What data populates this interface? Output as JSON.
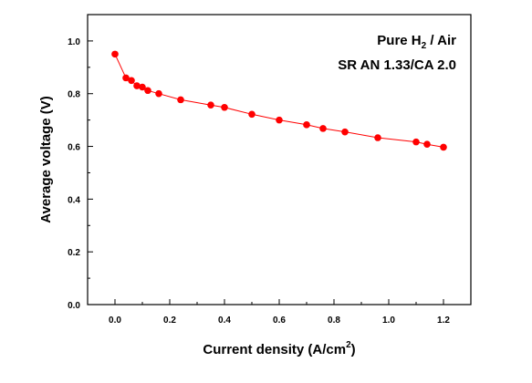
{
  "chart_data": {
    "type": "line",
    "title": "",
    "xlabel": "Current density (A/cm",
    "xlabel_sup": "2",
    "xlabel_end": ")",
    "ylabel": "Average voltage (V)",
    "xlim": [
      -0.1,
      1.3
    ],
    "ylim": [
      0.0,
      1.1
    ],
    "x_ticks": [
      0.0,
      0.2,
      0.4,
      0.6,
      0.8,
      1.0,
      1.2
    ],
    "x_tick_labels": [
      "0.0",
      "0.2",
      "0.4",
      "0.6",
      "0.8",
      "1.0",
      "1.2"
    ],
    "y_ticks": [
      0.0,
      0.2,
      0.4,
      0.6,
      0.8,
      1.0
    ],
    "y_tick_labels": [
      "0.0",
      "0.2",
      "0.4",
      "0.6",
      "0.8",
      "1.0"
    ],
    "grid": false,
    "series_color": "#ff0000",
    "annotations": {
      "line1_pre": "Pure H",
      "line1_sub": "2",
      "line1_post": " / Air",
      "line2": "SR AN 1.33/CA 2.0"
    },
    "series": [
      {
        "x": [
          0.0,
          0.04,
          0.06,
          0.08,
          0.1,
          0.12,
          0.16,
          0.24,
          0.35,
          0.4,
          0.5,
          0.6,
          0.7,
          0.76,
          0.84,
          0.96,
          1.1,
          1.14,
          1.2
        ],
        "y": [
          0.95,
          0.86,
          0.85,
          0.83,
          0.825,
          0.812,
          0.8,
          0.777,
          0.757,
          0.748,
          0.722,
          0.7,
          0.682,
          0.668,
          0.655,
          0.633,
          0.617,
          0.608,
          0.597
        ]
      }
    ]
  }
}
